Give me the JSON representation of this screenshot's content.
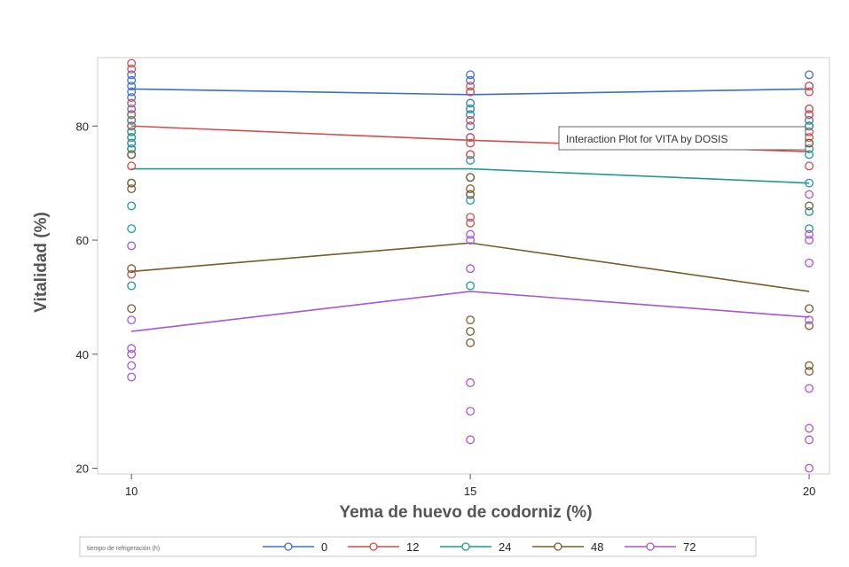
{
  "chart_data": {
    "type": "line",
    "tooltip": "Interaction Plot for VITA by DOSIS",
    "xlabel": "Yema de huevo de codorniz (%)",
    "ylabel": "Vitalidad (%)",
    "x": [
      10,
      15,
      20
    ],
    "xlim": [
      9.5,
      20.3
    ],
    "ylim": [
      19,
      92
    ],
    "yticks": [
      20,
      40,
      60,
      80
    ],
    "legend_title": "tiempo de refrigeración (h)",
    "legend_position": "bottom",
    "grid": false,
    "series": [
      {
        "name": "0",
        "color": "#3d6fc8",
        "means": [
          86.5,
          85.5,
          86.5
        ],
        "points": [
          [
            10,
            89
          ],
          [
            10,
            88
          ],
          [
            10,
            87
          ],
          [
            10,
            86
          ],
          [
            10,
            85
          ],
          [
            10,
            83
          ],
          [
            10,
            82
          ],
          [
            10,
            81
          ],
          [
            10,
            80
          ],
          [
            10,
            79
          ],
          [
            10,
            77
          ],
          [
            10,
            76
          ],
          [
            15,
            89
          ],
          [
            15,
            88
          ],
          [
            15,
            86
          ],
          [
            15,
            84
          ],
          [
            15,
            83
          ],
          [
            15,
            82
          ],
          [
            15,
            80
          ],
          [
            15,
            78
          ],
          [
            15,
            75
          ],
          [
            20,
            89
          ],
          [
            20,
            87
          ],
          [
            20,
            83
          ],
          [
            20,
            82
          ],
          [
            20,
            81
          ],
          [
            20,
            80
          ]
        ]
      },
      {
        "name": "12",
        "color": "#d64a4a",
        "means": [
          80,
          77.5,
          75.5
        ],
        "points": [
          [
            10,
            91
          ],
          [
            10,
            90
          ],
          [
            10,
            84
          ],
          [
            10,
            82
          ],
          [
            10,
            80
          ],
          [
            10,
            78
          ],
          [
            10,
            75
          ],
          [
            10,
            73
          ],
          [
            10,
            54
          ],
          [
            15,
            87
          ],
          [
            15,
            86
          ],
          [
            15,
            81
          ],
          [
            15,
            78
          ],
          [
            15,
            77
          ],
          [
            15,
            75
          ],
          [
            15,
            64
          ],
          [
            15,
            63
          ],
          [
            20,
            87
          ],
          [
            20,
            86
          ],
          [
            20,
            83
          ],
          [
            20,
            82
          ],
          [
            20,
            79
          ],
          [
            20,
            78
          ],
          [
            20,
            77
          ],
          [
            20,
            73
          ]
        ]
      },
      {
        "name": "24",
        "color": "#1f9a8f",
        "means": [
          72.5,
          72.5,
          70
        ],
        "points": [
          [
            10,
            81
          ],
          [
            10,
            79
          ],
          [
            10,
            78
          ],
          [
            10,
            77
          ],
          [
            10,
            76
          ],
          [
            10,
            70
          ],
          [
            10,
            66
          ],
          [
            10,
            62
          ],
          [
            10,
            52
          ],
          [
            15,
            83
          ],
          [
            15,
            74
          ],
          [
            15,
            71
          ],
          [
            15,
            68
          ],
          [
            15,
            67
          ],
          [
            15,
            52
          ],
          [
            20,
            80
          ],
          [
            20,
            76
          ],
          [
            20,
            75
          ],
          [
            20,
            70
          ],
          [
            20,
            65
          ],
          [
            20,
            62
          ]
        ]
      },
      {
        "name": "48",
        "color": "#7a5a2a",
        "means": [
          54.5,
          59.5,
          51
        ],
        "points": [
          [
            10,
            75
          ],
          [
            10,
            70
          ],
          [
            10,
            69
          ],
          [
            10,
            55
          ],
          [
            10,
            48
          ],
          [
            15,
            71
          ],
          [
            15,
            69
          ],
          [
            15,
            68
          ],
          [
            15,
            46
          ],
          [
            15,
            44
          ],
          [
            15,
            42
          ],
          [
            20,
            77
          ],
          [
            20,
            66
          ],
          [
            20,
            48
          ],
          [
            20,
            45
          ],
          [
            20,
            38
          ],
          [
            20,
            37
          ]
        ]
      },
      {
        "name": "72",
        "color": "#a855d6",
        "means": [
          44,
          51,
          46.5
        ],
        "points": [
          [
            10,
            59
          ],
          [
            10,
            46
          ],
          [
            10,
            41
          ],
          [
            10,
            40
          ],
          [
            10,
            38
          ],
          [
            10,
            36
          ],
          [
            15,
            61
          ],
          [
            15,
            60
          ],
          [
            15,
            55
          ],
          [
            15,
            35
          ],
          [
            15,
            30
          ],
          [
            15,
            25
          ],
          [
            20,
            68
          ],
          [
            20,
            61
          ],
          [
            20,
            60
          ],
          [
            20,
            56
          ],
          [
            20,
            46
          ],
          [
            20,
            34
          ],
          [
            20,
            27
          ],
          [
            20,
            25
          ],
          [
            20,
            20
          ]
        ]
      }
    ]
  }
}
